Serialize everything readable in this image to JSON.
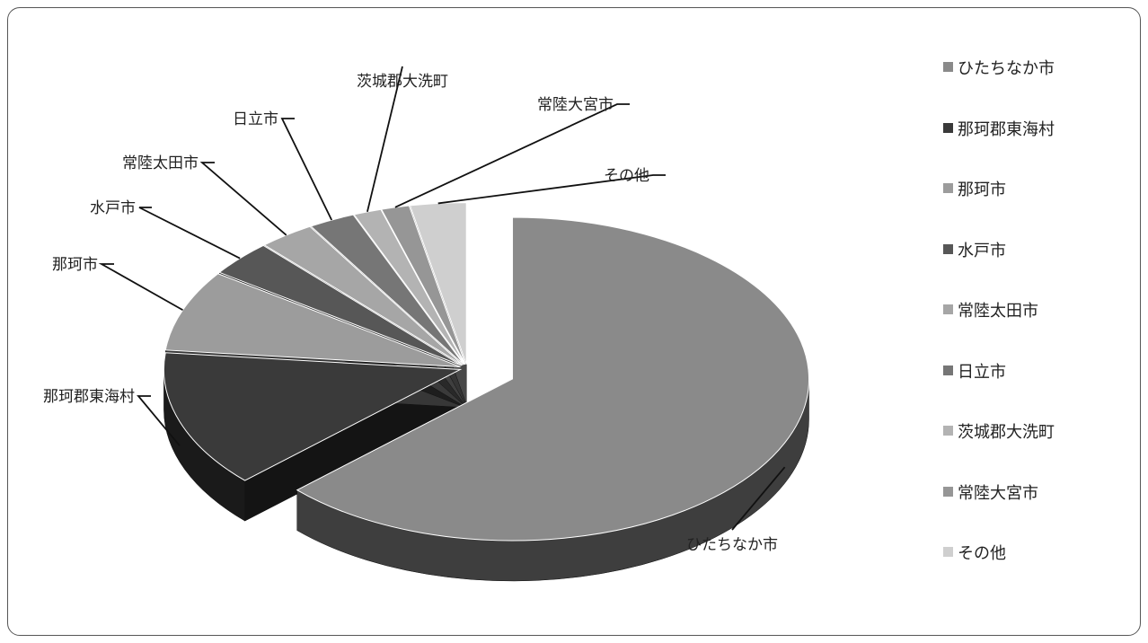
{
  "chart_data": {
    "type": "pie",
    "style": "3d-exploded",
    "legend_position": "right",
    "slices": [
      {
        "label": "ひたちなか市",
        "value": 62.0,
        "color": "#8a8a8a"
      },
      {
        "label": "那珂郡東海村",
        "value": 13.5,
        "color": "#3a3a3a"
      },
      {
        "label": "那珂市",
        "value": 8.0,
        "color": "#9c9c9c"
      },
      {
        "label": "水戸市",
        "value": 3.5,
        "color": "#575757"
      },
      {
        "label": "常陸太田市",
        "value": 3.0,
        "color": "#a6a6a6"
      },
      {
        "label": "日立市",
        "value": 2.5,
        "color": "#767676"
      },
      {
        "label": "茨城郡大洗町",
        "value": 1.5,
        "color": "#b3b3b3"
      },
      {
        "label": "常陸大宮市",
        "value": 1.5,
        "color": "#969696"
      },
      {
        "label": "その他",
        "value": 3.0,
        "color": "#cfcfcf"
      }
    ]
  }
}
